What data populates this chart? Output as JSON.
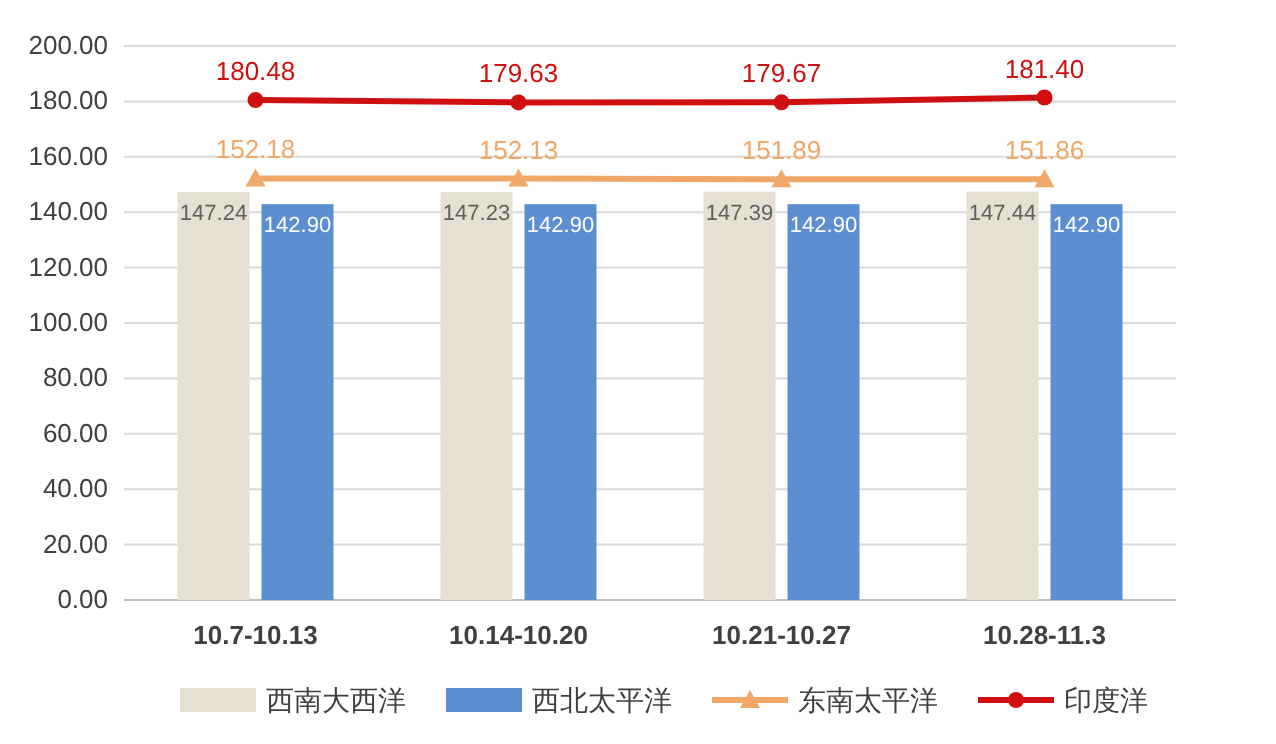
{
  "chart_data": {
    "type": "bar",
    "categories": [
      "10.7-10.13",
      "10.14-10.20",
      "10.21-10.27",
      "10.28-11.3"
    ],
    "series": [
      {
        "name": "西南大西洋",
        "color": "#e6e0d2",
        "values": [
          147.24,
          147.23,
          147.39,
          147.44
        ],
        "value_labels": [
          "147.24",
          "147.23",
          "147.39",
          "147.44"
        ]
      },
      {
        "name": "西北太平洋",
        "color": "#5b8fd2",
        "values": [
          142.9,
          142.9,
          142.9,
          142.9
        ],
        "value_labels": [
          "142.90",
          "142.90",
          "142.90",
          "142.90"
        ]
      },
      {
        "name": "东南太平洋",
        "type": "line",
        "color": "#f0a868",
        "marker": "triangle",
        "values": [
          152.18,
          152.13,
          151.89,
          151.86
        ],
        "value_labels": [
          "152.18",
          "152.13",
          "151.89",
          "151.86"
        ]
      },
      {
        "name": "印度洋",
        "type": "line",
        "color": "#d01010",
        "marker": "circle",
        "values": [
          180.48,
          179.63,
          179.67,
          181.4
        ],
        "value_labels": [
          "180.48",
          "179.63",
          "179.67",
          "181.40"
        ]
      }
    ],
    "ylim": [
      0,
      200
    ],
    "yticks": [
      {
        "value": 0,
        "label": "0.00"
      },
      {
        "value": 20,
        "label": "20.00"
      },
      {
        "value": 40,
        "label": "40.00"
      },
      {
        "value": 60,
        "label": "60.00"
      },
      {
        "value": 80,
        "label": "80.00"
      },
      {
        "value": 100,
        "label": "100.00"
      },
      {
        "value": 120,
        "label": "120.00"
      },
      {
        "value": 140,
        "label": "140.00"
      },
      {
        "value": 160,
        "label": "160.00"
      },
      {
        "value": 180,
        "label": "180.00"
      },
      {
        "value": 200,
        "label": "200.00"
      }
    ],
    "grid": "y",
    "legend": "bottom"
  }
}
